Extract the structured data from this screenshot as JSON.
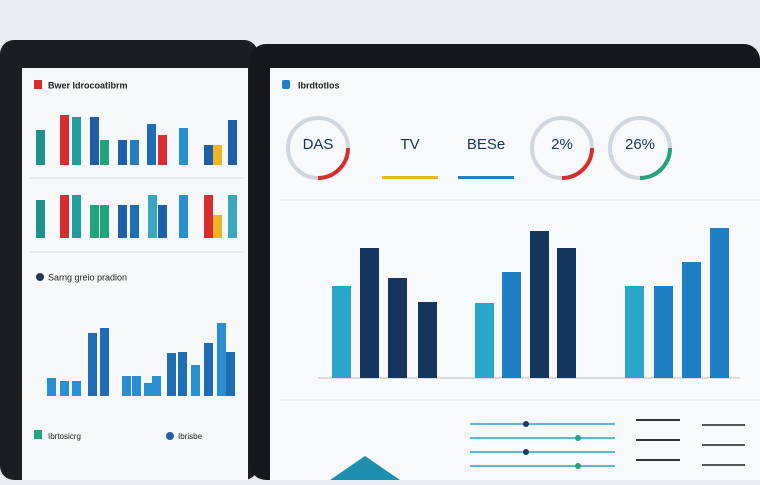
{
  "left_screen": {
    "title": "Bwer Idrocoatibrm",
    "section_title": "Sarng greio pradion",
    "footer_title": "Ibrtosicrg",
    "footer_title_2": "Ibrisbe",
    "charts": [
      {
        "values": [
          35,
          50,
          48,
          48,
          25,
          25,
          25,
          41,
          30,
          37,
          20,
          20,
          45
        ],
        "colors": [
          "#1f8f8a",
          "#d62e2e",
          "#1f9ea0",
          "#1f5fa8",
          "#22a37a",
          "#1f5fa8",
          "#2a7cc0",
          "#1f6db5",
          "#d62e2e",
          "#2a8fd0",
          "#1f5fa8",
          "#f0b429",
          "#1f5fa8"
        ]
      },
      {
        "values": [
          38,
          43,
          43,
          33,
          33,
          33,
          33,
          43,
          33,
          43,
          43,
          23,
          43
        ],
        "colors": [
          "#1f8f8a",
          "#d62e2e",
          "#1f9ea0",
          "#22a37a",
          "#22a37a",
          "#1f5fa8",
          "#1f6db5",
          "#3aa6c0",
          "#1f5fa8",
          "#2a8fd0",
          "#d62e2e",
          "#f0b429",
          "#3aa6c0"
        ]
      },
      {
        "values": [
          18,
          15,
          15,
          63,
          68,
          20,
          20,
          13,
          20,
          43,
          44,
          31,
          53,
          73,
          44
        ],
        "colors": [
          "#2a8fd0",
          "#2a8fd0",
          "#2a8fd0",
          "#1f6db5",
          "#1f6db5",
          "#2a8fd0",
          "#2a8fd0",
          "#2a8fd0",
          "#2a8fd0",
          "#1f6db5",
          "#1f6db5",
          "#2a8fd0",
          "#1f6db5",
          "#2a8fd0",
          "#1f6db5"
        ]
      }
    ]
  },
  "right_screen": {
    "title": "Ibrdtotlos",
    "kpis": [
      "DAS",
      "TV",
      "BESe",
      "2%",
      "26%"
    ],
    "chart": {
      "values": [
        92,
        130,
        100,
        76,
        75,
        106,
        147,
        130,
        92,
        92,
        116,
        150
      ],
      "colors": [
        "#2aa7c9",
        "#13355e",
        "#13355e",
        "#13355e",
        "#2aa7c9",
        "#1f7fc4",
        "#13355e",
        "#13355e",
        "#2aa7c9",
        "#1f7fc4",
        "#1f7fc4",
        "#1f7fc4"
      ]
    }
  }
}
